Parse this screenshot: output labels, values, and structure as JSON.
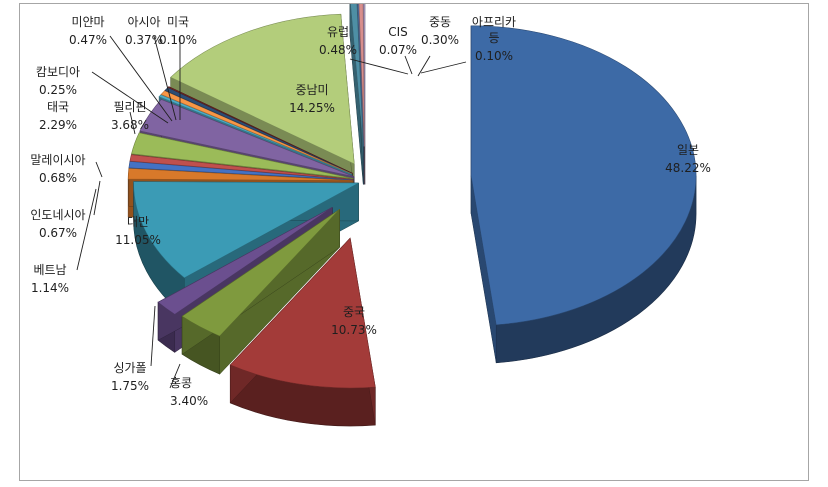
{
  "chart_data": {
    "type": "pie",
    "title": "",
    "style": "exploded-3d",
    "legend": "none",
    "slices": [
      {
        "label": "일본",
        "percent_label": "48.22%",
        "value": 48.22,
        "color": "#3d6aa6"
      },
      {
        "label": "중국",
        "percent_label": "10.73%",
        "value": 10.73,
        "color": "#a33b39"
      },
      {
        "label": "홍콩",
        "percent_label": "3.40%",
        "value": 3.4,
        "color": "#7f9a3e"
      },
      {
        "label": "싱가폴",
        "percent_label": "1.75%",
        "value": 1.75,
        "color": "#6b4f8f"
      },
      {
        "label": "대만",
        "percent_label": "11.05%",
        "value": 11.05,
        "color": "#3b9bb5"
      },
      {
        "label": "베트남",
        "percent_label": "1.14%",
        "value": 1.14,
        "color": "#d8792a"
      },
      {
        "label": "인도네시아",
        "percent_label": "0.67%",
        "value": 0.67,
        "color": "#4472c4"
      },
      {
        "label": "말레이시아",
        "percent_label": "0.68%",
        "value": 0.68,
        "color": "#c0504d"
      },
      {
        "label": "태국",
        "percent_label": "2.29%",
        "value": 2.29,
        "color": "#9bbb59"
      },
      {
        "label": "필리핀",
        "percent_label": "3.68%",
        "value": 3.68,
        "color": "#8064a2"
      },
      {
        "label": "캄보디아",
        "percent_label": "0.25%",
        "value": 0.25,
        "color": "#4bacc6"
      },
      {
        "label": "미얀마",
        "percent_label": "0.47%",
        "value": 0.47,
        "color": "#f79646"
      },
      {
        "label": "아시아",
        "percent_label": "0.37%",
        "value": 0.37,
        "color": "#2c4d75"
      },
      {
        "label": "미국",
        "percent_label": "0.10%",
        "value": 0.1,
        "color": "#772c2a"
      },
      {
        "label": "중남미",
        "percent_label": "14.25%",
        "value": 14.25,
        "color": "#b3cd7b"
      },
      {
        "label": "유럽",
        "percent_label": "0.48%",
        "value": 0.48,
        "color": "#4e8fa5"
      },
      {
        "label": "CIS",
        "percent_label": "0.07%",
        "value": 0.07,
        "color": "#5f7fb8"
      },
      {
        "label": "중동",
        "percent_label": "0.30%",
        "value": 0.3,
        "color": "#d88e8c"
      },
      {
        "label": "아프리카 등",
        "percent_label": "0.10%",
        "value": 0.1,
        "color": "#b7a6d0"
      }
    ]
  }
}
